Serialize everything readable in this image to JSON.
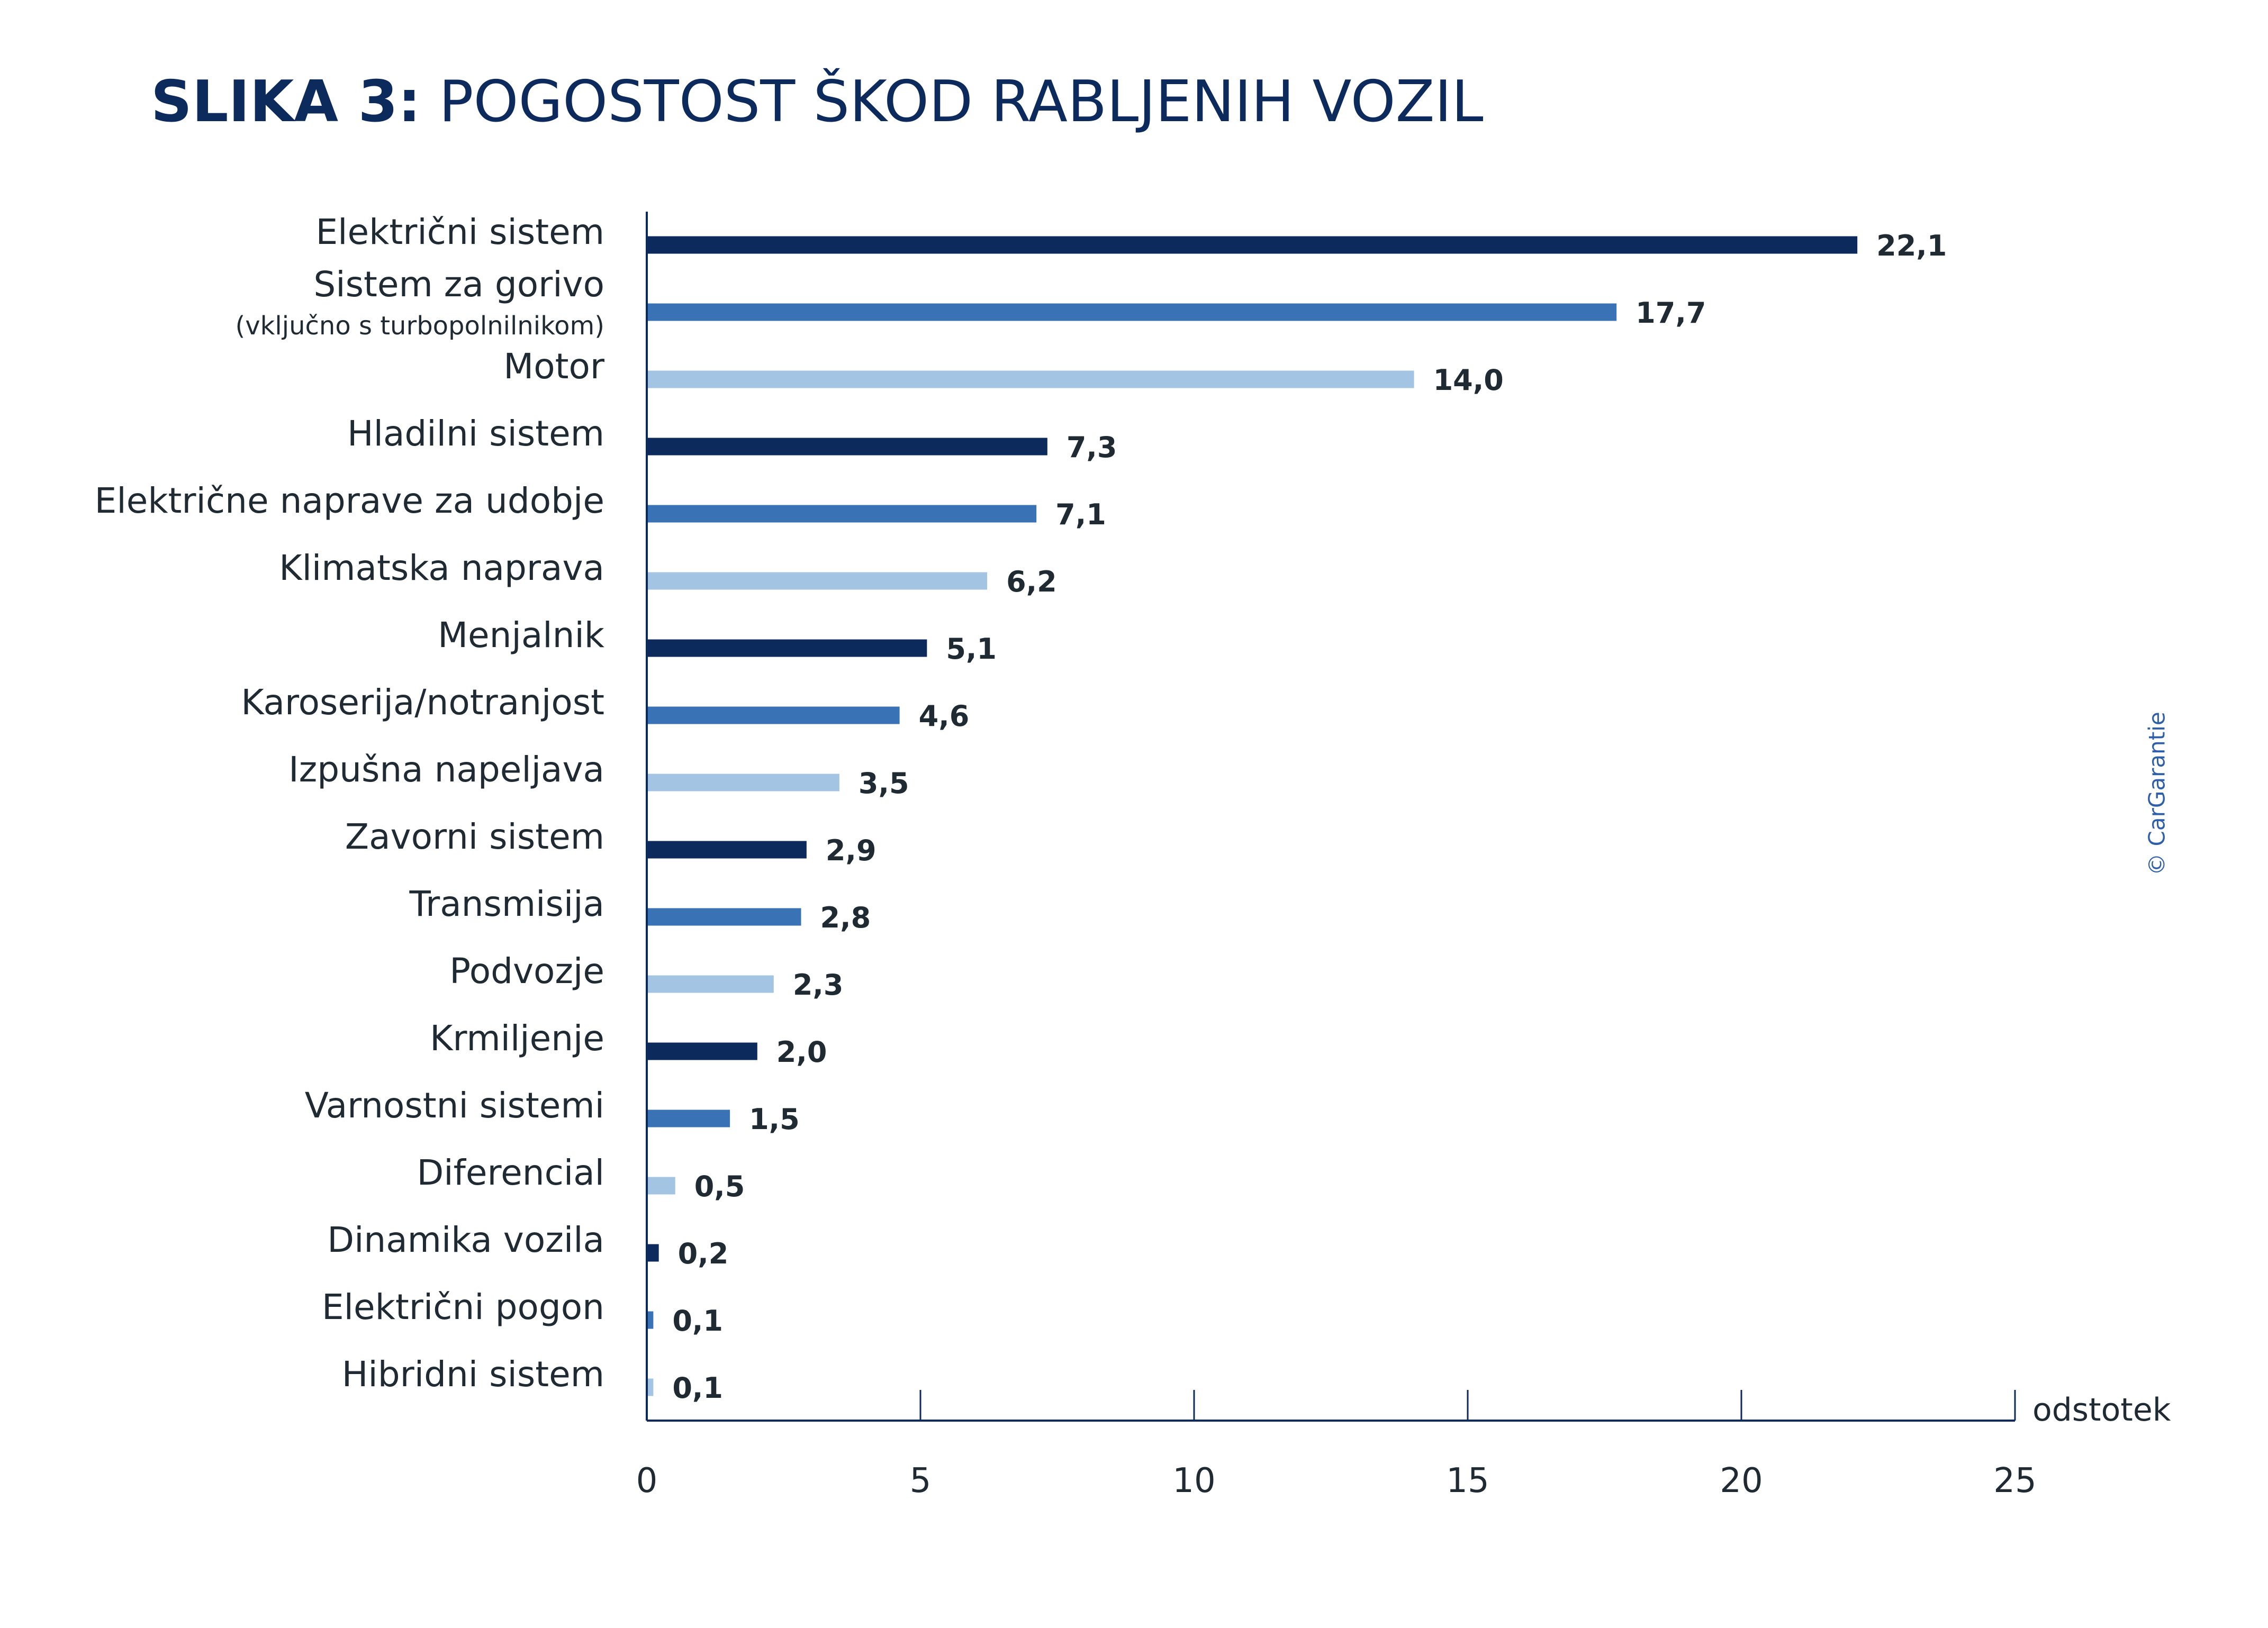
{
  "title": {
    "lead": "SLIKA 3:",
    "rest": " POGOSTOST ŠKOD RABLJENIH VOZIL"
  },
  "credit": "© CarGarantie",
  "colors": {
    "dark": "#0d2a5c",
    "medium": "#3a73b5",
    "light": "#a3c4e2",
    "axis": "#0d2a5c"
  },
  "chart_data": {
    "type": "bar",
    "orientation": "horizontal",
    "title": "POGOSTOST ŠKOD RABLJENIH VOZIL",
    "xlabel": "odstotek",
    "ylabel": "",
    "xlim": [
      0,
      25
    ],
    "ticks": [
      0,
      5,
      10,
      15,
      20,
      25
    ],
    "grid": false,
    "categories": [
      {
        "label": "Električni sistem",
        "value": 22.1,
        "display": "22,1"
      },
      {
        "label": "Sistem za gorivo",
        "sublabel": "(vključno s turbopolnilnikom)",
        "value": 17.7,
        "display": "17,7"
      },
      {
        "label": "Motor",
        "value": 14.0,
        "display": "14,0"
      },
      {
        "label": "Hladilni sistem",
        "value": 7.3,
        "display": "7,3"
      },
      {
        "label": "Električne naprave za udobje",
        "value": 7.1,
        "display": "7,1"
      },
      {
        "label": "Klimatska naprava",
        "value": 6.2,
        "display": "6,2"
      },
      {
        "label": "Menjalnik",
        "value": 5.1,
        "display": "5,1"
      },
      {
        "label": "Karoserija/notranjost",
        "value": 4.6,
        "display": "4,6"
      },
      {
        "label": "Izpušna napeljava",
        "value": 3.5,
        "display": "3,5"
      },
      {
        "label": "Zavorni sistem",
        "value": 2.9,
        "display": "2,9"
      },
      {
        "label": "Transmisija",
        "value": 2.8,
        "display": "2,8"
      },
      {
        "label": "Podvozje",
        "value": 2.3,
        "display": "2,3"
      },
      {
        "label": "Krmiljenje",
        "value": 2.0,
        "display": "2,0"
      },
      {
        "label": "Varnostni sistemi",
        "value": 1.5,
        "display": "1,5"
      },
      {
        "label": "Diferencial",
        "value": 0.5,
        "display": "0,5"
      },
      {
        "label": "Dinamika vozila",
        "value": 0.2,
        "display": "0,2"
      },
      {
        "label": "Električni pogon",
        "value": 0.1,
        "display": "0,1"
      },
      {
        "label": "Hibridni sistem",
        "value": 0.1,
        "display": "0,1"
      }
    ]
  }
}
